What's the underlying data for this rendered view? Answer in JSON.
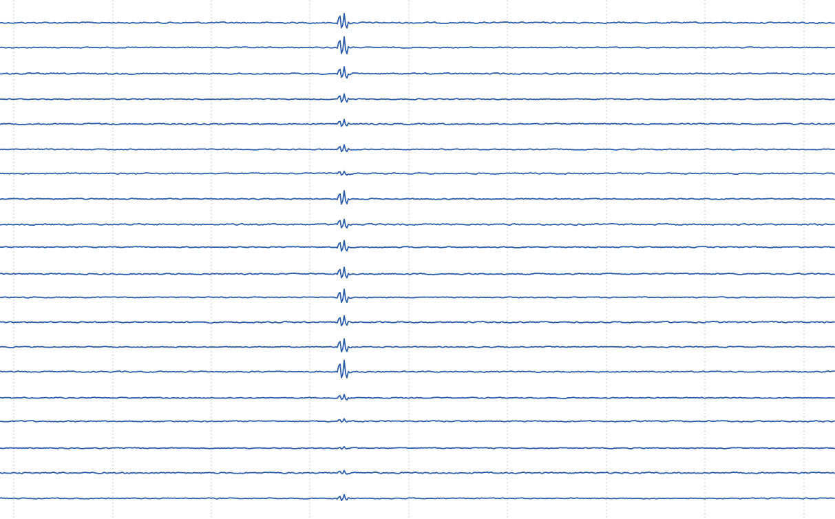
{
  "chart_data": {
    "type": "line",
    "title": "",
    "xlabel": "",
    "ylabel": "",
    "grid": "vertical-dotted",
    "legend": "none",
    "line_color": "#2d5da8",
    "grid_color": "#c8c8c8",
    "xlim": [
      0,
      1213
    ],
    "vertical_grid_x": [
      20,
      164,
      307,
      450,
      594,
      737,
      881,
      1024,
      1168
    ],
    "event_x": 500,
    "series": [
      {
        "baseline": 33,
        "spike": 14,
        "dip": 2,
        "width": 1.3
      },
      {
        "baseline": 69,
        "spike": 16,
        "dip": 2,
        "width": 1.0
      },
      {
        "baseline": 107,
        "spike": 10,
        "dip": 2,
        "width": 1.3
      },
      {
        "baseline": 144,
        "spike": 7,
        "dip": 1,
        "width": 1.0
      },
      {
        "baseline": 180,
        "spike": 6,
        "dip": 1,
        "width": 1.3
      },
      {
        "baseline": 217,
        "spike": 6,
        "dip": 1,
        "width": 1.0
      },
      {
        "baseline": 252,
        "spike": 4,
        "dip": 1,
        "width": 1.2
      },
      {
        "baseline": 289,
        "spike": 12,
        "dip": 2,
        "width": 1.0
      },
      {
        "baseline": 326,
        "spike": 8,
        "dip": 1,
        "width": 1.4
      },
      {
        "baseline": 359,
        "spike": 10,
        "dip": 2,
        "width": 1.0
      },
      {
        "baseline": 398,
        "spike": 10,
        "dip": 2,
        "width": 1.3
      },
      {
        "baseline": 432,
        "spike": 12,
        "dip": 2,
        "width": 1.0
      },
      {
        "baseline": 468,
        "spike": 9,
        "dip": 1,
        "width": 1.3
      },
      {
        "baseline": 504,
        "spike": 12,
        "dip": 2,
        "width": 1.0
      },
      {
        "baseline": 540,
        "spike": 16,
        "dip": 3,
        "width": 1.2
      },
      {
        "baseline": 578,
        "spike": 5,
        "dip": 1,
        "width": 1.0
      },
      {
        "baseline": 612,
        "spike": 3,
        "dip": 1,
        "width": 1.2
      },
      {
        "baseline": 651,
        "spike": 2,
        "dip": 1,
        "width": 1.0
      },
      {
        "baseline": 687,
        "spike": 3,
        "dip": 1,
        "width": 1.3
      },
      {
        "baseline": 724,
        "spike": 5,
        "dip": 1,
        "width": 1.0
      }
    ]
  }
}
